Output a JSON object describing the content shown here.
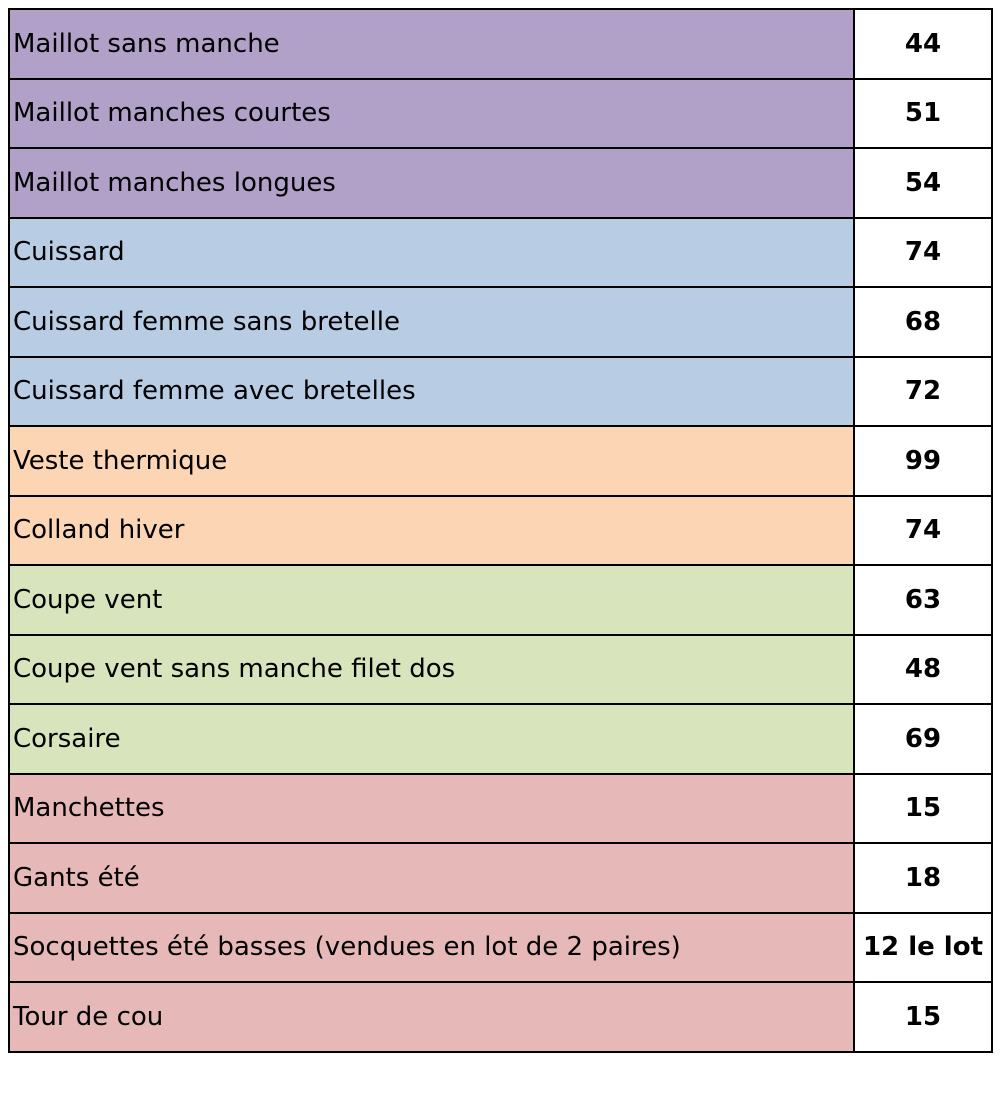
{
  "colors": {
    "purple": "#b1a0c7",
    "blue": "#b8cce4",
    "orange": "#fcd5b4",
    "green": "#d8e4bc",
    "pink": "#e6b8b7",
    "price_background": "#ffffff",
    "border": "#000000"
  },
  "rows": [
    {
      "item": "Maillot sans manche",
      "price": "44",
      "color": "purple"
    },
    {
      "item": "Maillot manches courtes",
      "price": "51",
      "color": "purple"
    },
    {
      "item": "Maillot manches longues",
      "price": "54",
      "color": "purple"
    },
    {
      "item": "Cuissard",
      "price": "74",
      "color": "blue"
    },
    {
      "item": "Cuissard femme sans bretelle",
      "price": "68",
      "color": "blue"
    },
    {
      "item": "Cuissard femme avec bretelles",
      "price": "72",
      "color": "blue"
    },
    {
      "item": "Veste thermique",
      "price": "99",
      "color": "orange"
    },
    {
      "item": "Colland hiver",
      "price": "74",
      "color": "orange"
    },
    {
      "item": "Coupe vent",
      "price": "63",
      "color": "green"
    },
    {
      "item": "Coupe vent sans manche filet dos",
      "price": "48",
      "color": "green"
    },
    {
      "item": "Corsaire",
      "price": "69",
      "color": "green"
    },
    {
      "item": "Manchettes",
      "price": "15",
      "color": "pink"
    },
    {
      "item": "Gants été",
      "price": "18",
      "color": "pink"
    },
    {
      "item": "Socquettes été basses (vendues en lot de 2 paires)",
      "price": "12 le lot",
      "color": "pink"
    },
    {
      "item": "Tour de cou",
      "price": "15",
      "color": "pink"
    }
  ]
}
